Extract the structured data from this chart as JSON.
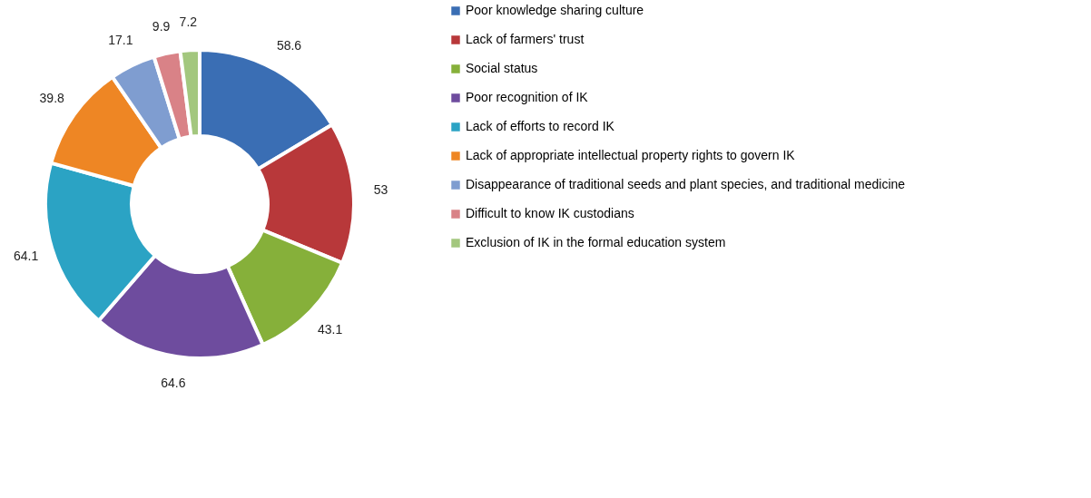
{
  "chart_data": {
    "type": "donut",
    "categories": [
      "Poor knowledge sharing culture",
      "Lack of farmers' trust",
      "Social status",
      "Poor recognition of IK",
      "Lack of efforts to record IK",
      "Lack of appropriate intellectual property rights to govern IK",
      "Disappearance of traditional seeds and plant species, and traditional medicine",
      "Difficult to know IK custodians",
      "Exclusion of IK in the formal education system"
    ],
    "values": [
      58.6,
      53,
      43.1,
      64.6,
      64.1,
      39.8,
      17.1,
      9.9,
      7.2
    ],
    "colors": [
      "#3a6eb4",
      "#b8383a",
      "#86b03a",
      "#6e4c9e",
      "#2ba3c4",
      "#ee8624",
      "#7f9dd0",
      "#d98287",
      "#a3c77e"
    ],
    "data_labels": true,
    "legend": "right"
  }
}
